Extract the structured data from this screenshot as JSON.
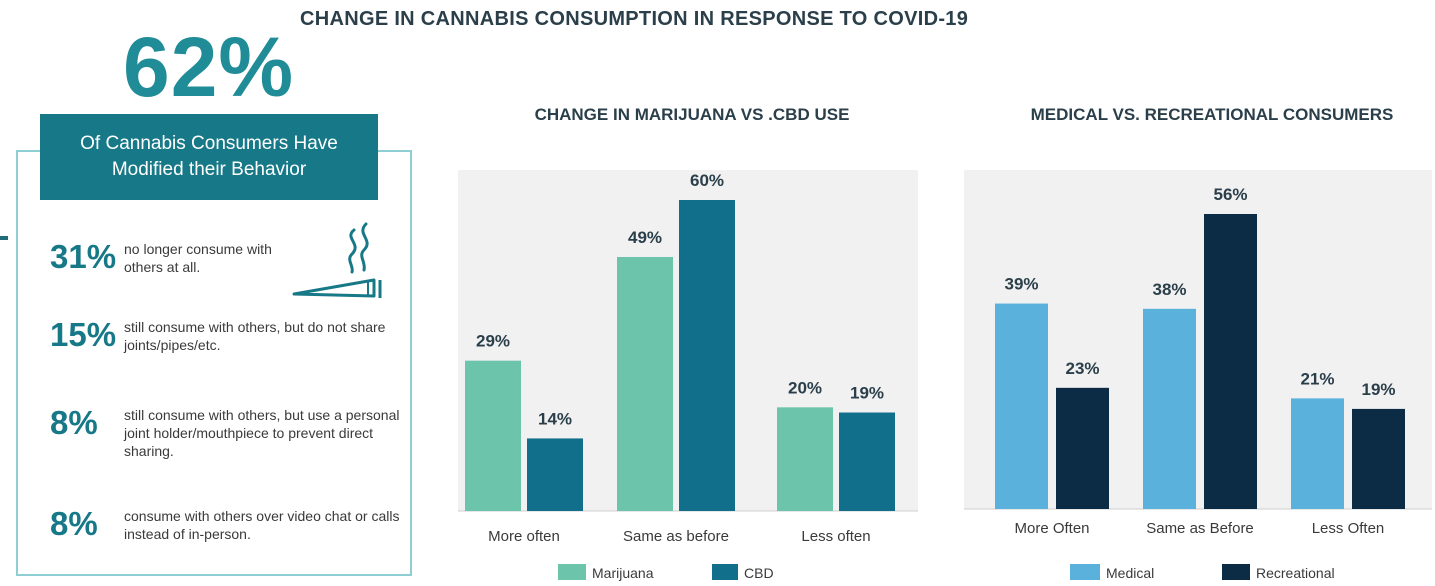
{
  "infographic": {
    "title": "CHANGE IN CANNABIS CONSUMPTION IN RESPONSE TO COVID-19",
    "headline_stat": "62%",
    "headline_text": "Of Cannabis Consumers Have Modified their Behavior",
    "stats": [
      {
        "pct": "31%",
        "text": "no longer consume with others at all."
      },
      {
        "pct": "15%",
        "text": "still consume with others, but do not share joints/pipes/etc."
      },
      {
        "pct": "8%",
        "text": "still consume with others, but use a personal joint holder/mouthpiece to prevent direct sharing."
      },
      {
        "pct": "8%",
        "text": "consume with others over video chat or calls instead of in-person."
      }
    ],
    "icon": "joint-smoke-icon"
  },
  "chart_data": [
    {
      "type": "bar",
      "title": "CHANGE IN MARIJUANA VS .CBD USE",
      "categories": [
        "More often",
        "Same as before",
        "Less often"
      ],
      "series": [
        {
          "name": "Marijuana",
          "values": [
            29,
            49,
            20
          ],
          "labels": [
            "29%",
            "49%",
            "20%"
          ],
          "color": "#6cc4aa"
        },
        {
          "name": "CBD",
          "values": [
            14,
            60,
            19
          ],
          "labels": [
            "14%",
            "60%",
            "19%"
          ],
          "color": "#126f8c"
        }
      ],
      "ylim": [
        0,
        60
      ],
      "grid": false,
      "legend_position": "bottom"
    },
    {
      "type": "bar",
      "title": "MEDICAL VS. RECREATIONAL CONSUMERS",
      "categories": [
        "More Often",
        "Same as Before",
        "Less Often"
      ],
      "series": [
        {
          "name": "Medical",
          "values": [
            39,
            38,
            21
          ],
          "labels": [
            "39%",
            "38%",
            "21%"
          ],
          "color": "#5ab2dc"
        },
        {
          "name": "Recreational",
          "values": [
            23,
            56,
            19
          ],
          "labels": [
            "23%",
            "56%",
            "19%"
          ],
          "color": "#0c2b45"
        }
      ],
      "ylim": [
        0,
        56
      ],
      "grid": false,
      "legend_position": "bottom"
    }
  ]
}
